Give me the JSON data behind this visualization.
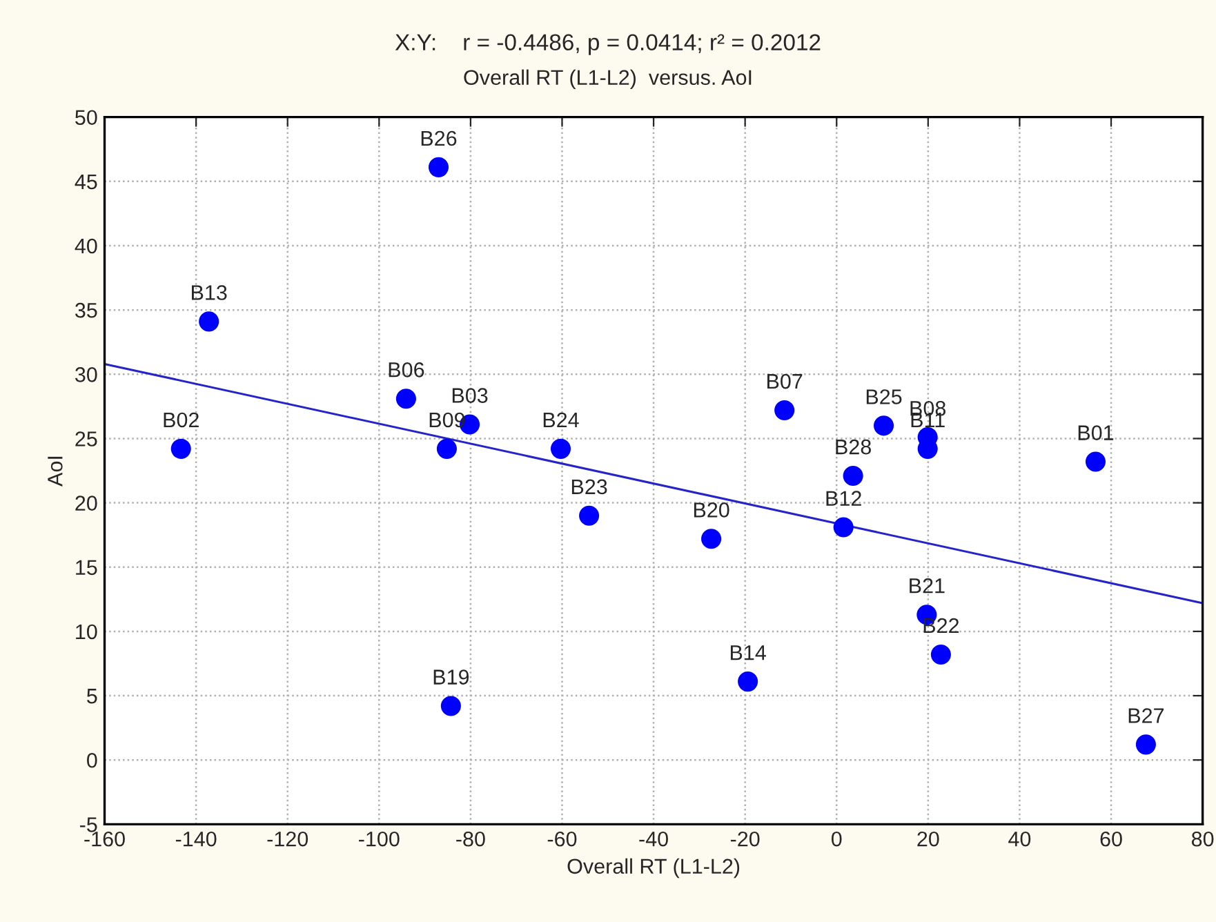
{
  "chart_data": {
    "type": "scatter",
    "title": "X:Y:    r = -0.4486, p = 0.0414; r² = 0.2012",
    "subtitle": "Overall RT (L1-L2)  versus. AoI",
    "xlabel": "Overall RT (L1-L2)",
    "ylabel": "AoI",
    "xlim": [
      -160,
      80
    ],
    "xticks": [
      -160,
      -140,
      -120,
      -100,
      -80,
      -60,
      -40,
      -20,
      0,
      20,
      40,
      60,
      80
    ],
    "ylim": [
      -5,
      50
    ],
    "yticks": [
      -5,
      0,
      5,
      10,
      15,
      20,
      25,
      30,
      35,
      40,
      45,
      50
    ],
    "grid": true,
    "series": [
      {
        "marker": "circle",
        "color": "#0000ff",
        "x": [
          -87,
          -137.2,
          -143.3,
          -94.1,
          -80.2,
          -85.2,
          -60.3,
          -54.1,
          -84.3,
          -11.4,
          10.3,
          19.9,
          19.9,
          56.6,
          3.6,
          1.5,
          -27.4,
          19.7,
          22.8,
          -19.4,
          67.6
        ],
        "values": [
          46.1,
          34.1,
          24.2,
          28.1,
          26.1,
          24.2,
          24.2,
          19,
          4.2,
          27.2,
          26,
          25.1,
          24.2,
          23.2,
          22.1,
          18.1,
          17.2,
          11.3,
          8.2,
          6.1,
          1.2
        ]
      },
      {
        "type": "line",
        "color": "#2424c8",
        "x": [
          -160,
          80
        ],
        "values": [
          30.8,
          12.2
        ]
      }
    ],
    "annotations": [
      {
        "text": "B26",
        "x": -87,
        "y": 46.1
      },
      {
        "text": "B13",
        "x": -137.2,
        "y": 34.1
      },
      {
        "text": "B02",
        "x": -143.3,
        "y": 24.2
      },
      {
        "text": "B06",
        "x": -94.1,
        "y": 28.1
      },
      {
        "text": "B03",
        "x": -80.2,
        "y": 26.1
      },
      {
        "text": "B09",
        "x": -85.2,
        "y": 24.2
      },
      {
        "text": "B24",
        "x": -60.3,
        "y": 24.2
      },
      {
        "text": "B23",
        "x": -54.1,
        "y": 19
      },
      {
        "text": "B19",
        "x": -84.3,
        "y": 4.2
      },
      {
        "text": "B07",
        "x": -11.4,
        "y": 27.2
      },
      {
        "text": "B25",
        "x": 10.3,
        "y": 26
      },
      {
        "text": "B08",
        "x": 19.9,
        "y": 25.1
      },
      {
        "text": "B11",
        "x": 19.9,
        "y": 24.2
      },
      {
        "text": "B01",
        "x": 56.6,
        "y": 23.2
      },
      {
        "text": "B28",
        "x": 3.6,
        "y": 22.1
      },
      {
        "text": "B12",
        "x": 1.5,
        "y": 18.1
      },
      {
        "text": "B20",
        "x": -27.4,
        "y": 17.2
      },
      {
        "text": "B21",
        "x": 19.7,
        "y": 11.3
      },
      {
        "text": "B22",
        "x": 22.8,
        "y": 8.2
      },
      {
        "text": "B14",
        "x": -19.4,
        "y": 6.1
      },
      {
        "text": "B27",
        "x": 67.6,
        "y": 1.2
      }
    ]
  }
}
